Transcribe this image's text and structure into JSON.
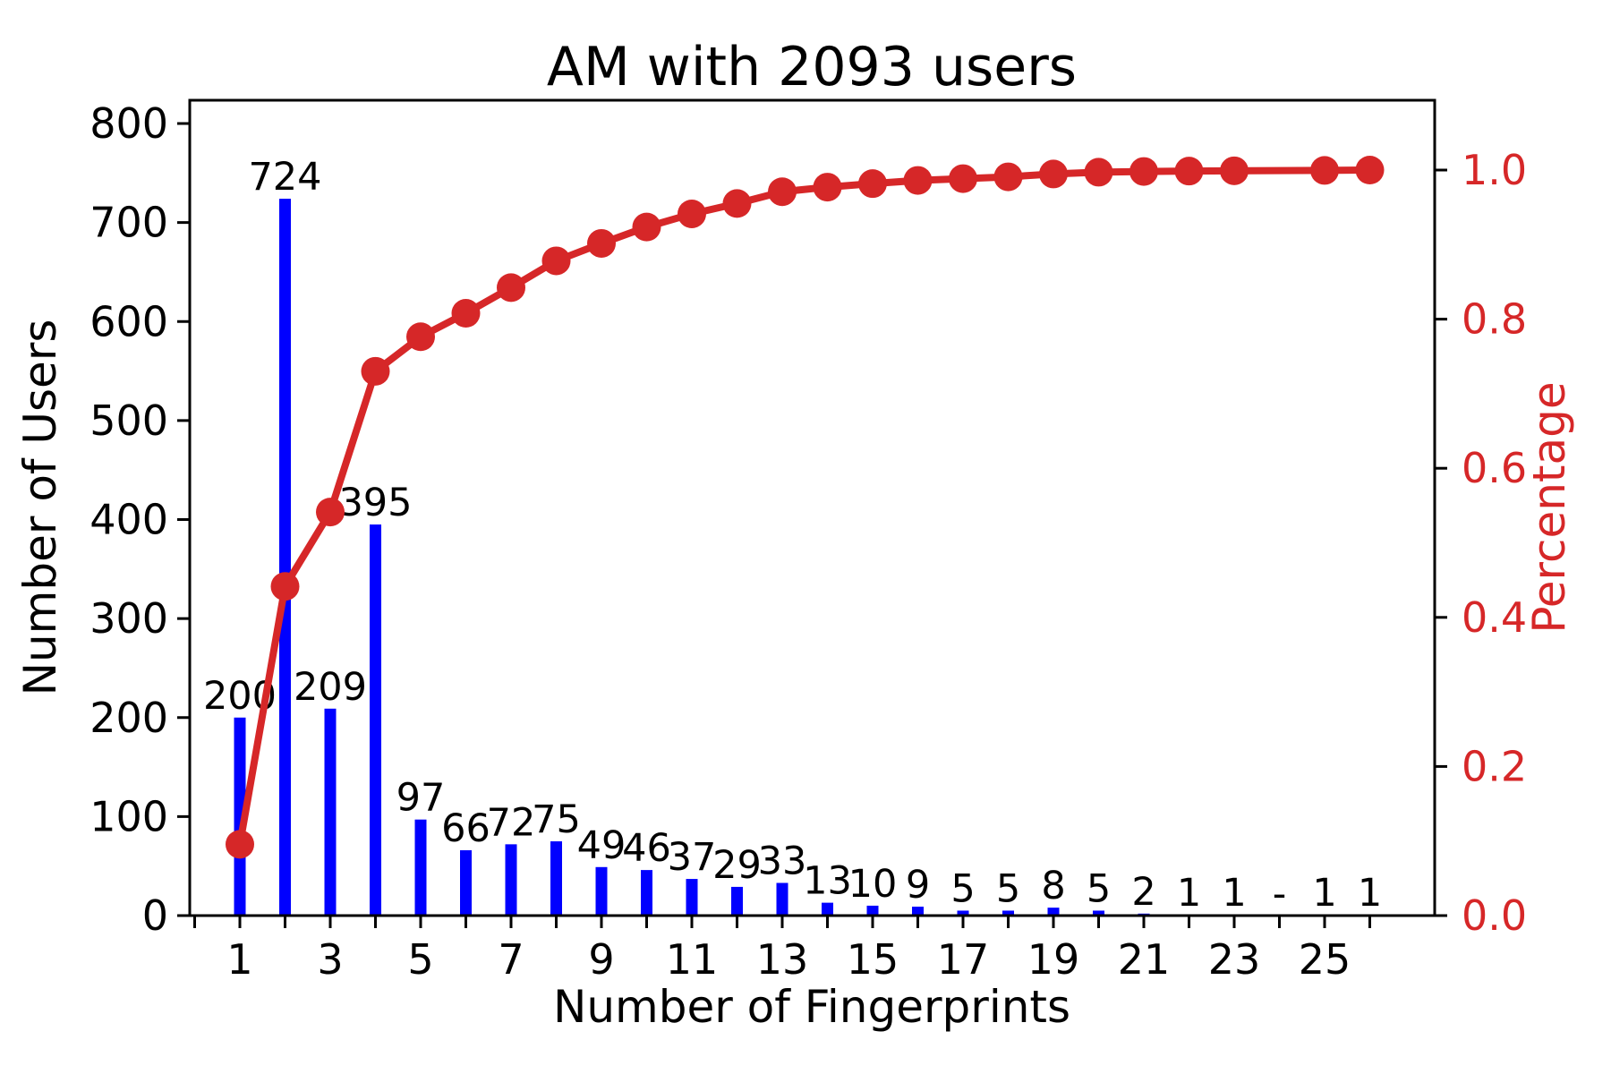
{
  "figure": {
    "title": "AM with 2093 users",
    "total_users": 2093
  },
  "colors": {
    "bar": "#0000ff",
    "line": "#d62728",
    "right_axis_text": "#d62728",
    "axis": "#000000",
    "background": "#ffffff"
  },
  "chart_data": {
    "type": "pareto (bar + cumulative percentage line)",
    "title": "AM with 2093 users",
    "xlabel": "Number of Fingerprints",
    "categories": [
      1,
      2,
      3,
      4,
      5,
      6,
      7,
      8,
      9,
      10,
      11,
      12,
      13,
      14,
      15,
      16,
      17,
      18,
      19,
      20,
      21,
      22,
      23,
      24,
      25,
      26
    ],
    "series": [
      {
        "name": "Number of Users",
        "type": "bar",
        "axis": "left",
        "color": "#0000ff",
        "values": [
          200,
          724,
          209,
          395,
          97,
          66,
          72,
          75,
          49,
          46,
          37,
          29,
          33,
          13,
          10,
          9,
          5,
          5,
          8,
          5,
          2,
          1,
          1,
          0,
          1,
          1
        ],
        "bar_labels": [
          "200",
          "724",
          "209",
          "395",
          "97",
          "66",
          "72",
          "75",
          "49",
          "46",
          "37",
          "29",
          "33",
          "13",
          "10",
          "9",
          "5",
          "5",
          "8",
          "5",
          "2",
          "1",
          "1",
          "-",
          "1",
          "1"
        ]
      },
      {
        "name": "Percentage",
        "type": "line",
        "axis": "right",
        "color": "#d62728",
        "marker": "circle",
        "values": [
          0.0956,
          0.4415,
          0.5413,
          0.7301,
          0.7764,
          0.8079,
          0.8423,
          0.8782,
          0.9016,
          0.9236,
          0.9412,
          0.9551,
          0.9709,
          0.9771,
          0.9818,
          0.9861,
          0.9885,
          0.9909,
          0.9947,
          0.9971,
          0.9981,
          0.9986,
          0.999,
          null,
          0.9995,
          1.0
        ]
      }
    ],
    "left_axis": {
      "label": "Number of Users",
      "ticks": [
        0,
        100,
        200,
        300,
        400,
        500,
        600,
        700,
        800
      ],
      "lim": [
        0,
        823
      ]
    },
    "right_axis": {
      "label": "Percentage",
      "tick_labels": [
        "0.0",
        "0.2",
        "0.4",
        "0.6",
        "0.8",
        "1.0"
      ],
      "tick_values": [
        0.0,
        0.2,
        0.4,
        0.6,
        0.8,
        1.0
      ],
      "lim": [
        0,
        1.094
      ]
    },
    "x_axis": {
      "label": "Number of Fingerprints",
      "tick_positions": [
        0,
        1,
        2,
        3,
        4,
        5,
        6,
        7,
        8,
        9,
        10,
        11,
        12,
        13,
        14,
        15,
        16,
        17,
        18,
        19,
        20,
        21,
        22,
        23,
        24,
        25,
        26
      ],
      "labeled_ticks": [
        1,
        3,
        5,
        7,
        9,
        11,
        13,
        15,
        17,
        19,
        21,
        23,
        25
      ],
      "lim": [
        -0.11,
        27.46
      ]
    },
    "grid": false,
    "legend": "none"
  }
}
